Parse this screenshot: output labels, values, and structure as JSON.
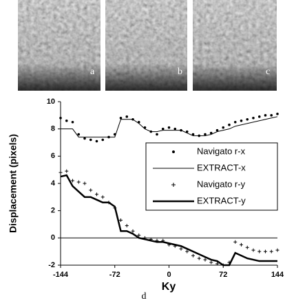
{
  "panel_labels": [
    "a",
    "b",
    "c",
    "d"
  ],
  "chart_data": {
    "type": "line",
    "xlabel": "Ky",
    "ylabel": "Displacement (pixels)",
    "x": [
      -144,
      -136,
      -128,
      -120,
      -112,
      -104,
      -96,
      -88,
      -80,
      -72,
      -64,
      -56,
      -48,
      -40,
      -32,
      -24,
      -16,
      -8,
      0,
      8,
      16,
      24,
      32,
      40,
      48,
      56,
      64,
      72,
      80,
      88,
      96,
      104,
      112,
      120,
      128,
      136,
      144
    ],
    "xlim": [
      -144,
      144
    ],
    "xticks": [
      -144,
      -72,
      0,
      72,
      144
    ],
    "ylim": [
      -2,
      10
    ],
    "yticks": [
      -2,
      0,
      2,
      4,
      6,
      8,
      10
    ],
    "legend": "right",
    "series": [
      {
        "name": "Navigato r-x",
        "color": "#000000",
        "marker": "dot",
        "values": [
          8.8,
          8.6,
          8.5,
          7.6,
          7.3,
          7.2,
          7.1,
          7.2,
          7.4,
          7.6,
          8.8,
          8.9,
          8.7,
          8.5,
          8.1,
          7.8,
          7.6,
          8.0,
          8.1,
          8.0,
          7.9,
          7.8,
          7.6,
          7.5,
          7.6,
          7.7,
          7.9,
          8.1,
          8.3,
          8.5,
          8.6,
          8.7,
          8.8,
          8.9,
          9.0,
          9.0,
          9.1
        ]
      },
      {
        "name": "EXTRACT-x",
        "color": "#000000",
        "marker": "thin",
        "values": [
          8.0,
          8.0,
          8.0,
          7.4,
          7.4,
          7.4,
          7.4,
          7.4,
          7.4,
          7.4,
          8.7,
          8.7,
          8.7,
          8.4,
          8.0,
          7.8,
          7.8,
          7.9,
          7.9,
          7.9,
          7.9,
          7.7,
          7.5,
          7.5,
          7.5,
          7.6,
          7.8,
          7.9,
          8.0,
          8.2,
          8.3,
          8.4,
          8.5,
          8.6,
          8.7,
          8.8,
          8.9
        ]
      },
      {
        "name": "Navigato r-y",
        "color": "#000000",
        "marker": "plus",
        "values": [
          4.8,
          4.9,
          4.2,
          4.1,
          4.0,
          3.5,
          3.2,
          3.0,
          2.6,
          2.2,
          1.3,
          0.9,
          0.5,
          0.2,
          0.0,
          -0.1,
          -0.2,
          -0.2,
          -0.5,
          -0.6,
          -0.8,
          -1.0,
          -1.3,
          -1.5,
          -1.6,
          -1.8,
          -1.9,
          -2.0,
          -1.8,
          -0.3,
          -0.5,
          -0.7,
          -0.9,
          -1.0,
          -1.0,
          -1.0,
          -0.9
        ]
      },
      {
        "name": "EXTRACT-y",
        "color": "#000000",
        "marker": "thick",
        "values": [
          4.5,
          4.6,
          3.8,
          3.4,
          3.0,
          3.0,
          2.8,
          2.6,
          2.6,
          2.3,
          0.5,
          0.5,
          0.3,
          0.0,
          -0.1,
          -0.2,
          -0.3,
          -0.3,
          -0.4,
          -0.5,
          -0.6,
          -0.8,
          -1.0,
          -1.2,
          -1.4,
          -1.6,
          -1.7,
          -2.0,
          -2.0,
          -1.1,
          -1.3,
          -1.5,
          -1.6,
          -1.7,
          -1.7,
          -1.7,
          -1.7
        ]
      }
    ]
  }
}
